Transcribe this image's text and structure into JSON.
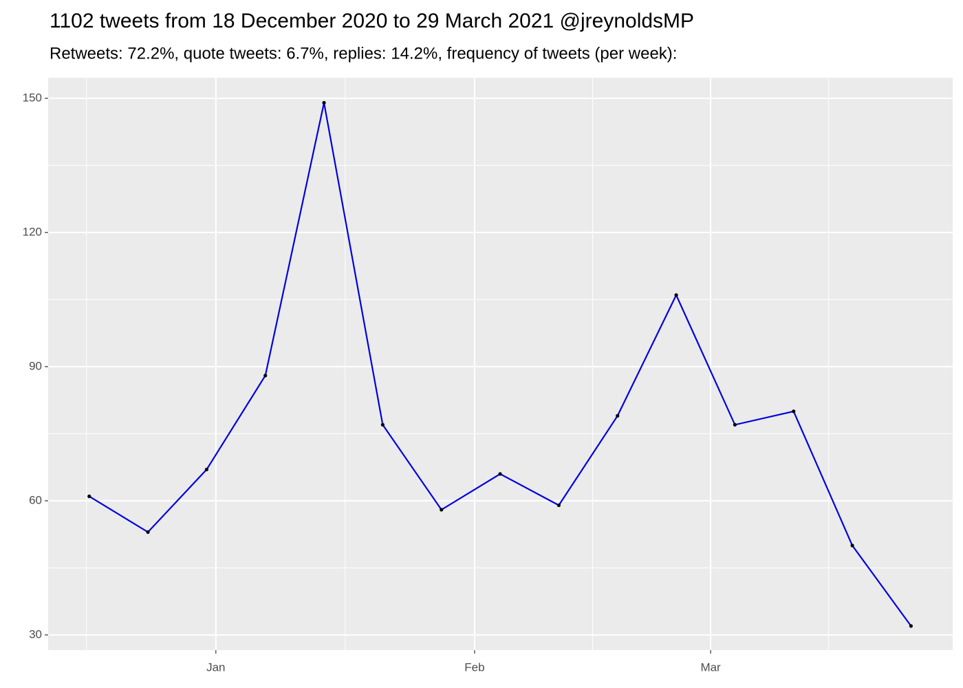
{
  "chart_data": {
    "type": "line",
    "title": "1102 tweets from 18 December 2020 to 29 March 2021 @jreynoldsMP",
    "subtitle": "Retweets: 72.2%, quote tweets: 6.7%, replies: 14.2%, frequency of tweets (per week):",
    "x": [
      0,
      1,
      2,
      3,
      4,
      5,
      6,
      7,
      8,
      9,
      10,
      11,
      12,
      13,
      14
    ],
    "series": [
      {
        "color": "#0000e0",
        "point_color": "#000000",
        "values": [
          61,
          53,
          67,
          88,
          149,
          77,
          58,
          66,
          59,
          79,
          106,
          77,
          80,
          50,
          32
        ]
      }
    ],
    "xlim": [
      -0.7,
      14.71
    ],
    "xticks": [
      {
        "value": 2.157,
        "label": "Jan"
      },
      {
        "value": 6.565,
        "label": "Feb"
      },
      {
        "value": 10.586,
        "label": "Mar"
      }
    ],
    "ylim": [
      26.6,
      154.6
    ],
    "yticks": [
      30,
      60,
      90,
      120,
      150
    ],
    "grid": true
  }
}
